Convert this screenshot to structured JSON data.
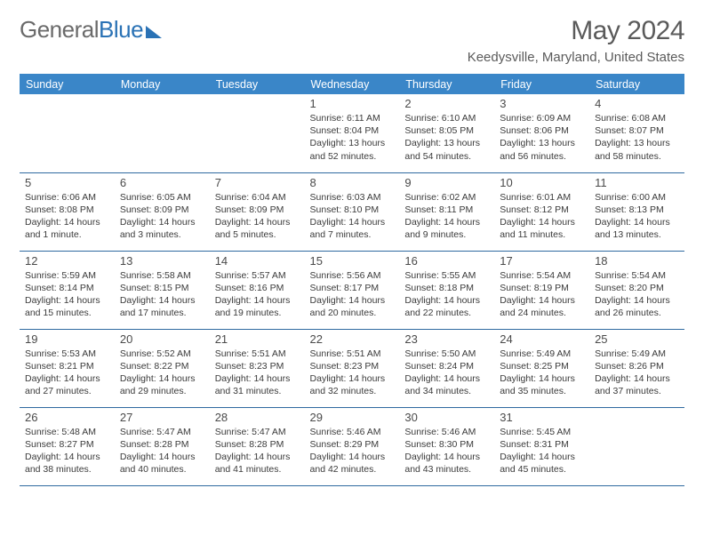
{
  "brand": {
    "first": "General",
    "second": "Blue"
  },
  "title": "May 2024",
  "location": "Keedysville, Maryland, United States",
  "colors": {
    "header_bg": "#3a86c8",
    "header_text": "#ffffff",
    "rule": "#2f6aa0",
    "body_text": "#3a3a3a",
    "title_text": "#5a5a5a",
    "brand_gray": "#6a6a6a",
    "brand_blue": "#2a72b5",
    "page_bg": "#ffffff"
  },
  "day_headers": [
    "Sunday",
    "Monday",
    "Tuesday",
    "Wednesday",
    "Thursday",
    "Friday",
    "Saturday"
  ],
  "weeks": [
    [
      null,
      null,
      null,
      {
        "n": "1",
        "sr": "Sunrise: 6:11 AM",
        "ss": "Sunset: 8:04 PM",
        "dl": "Daylight: 13 hours and 52 minutes."
      },
      {
        "n": "2",
        "sr": "Sunrise: 6:10 AM",
        "ss": "Sunset: 8:05 PM",
        "dl": "Daylight: 13 hours and 54 minutes."
      },
      {
        "n": "3",
        "sr": "Sunrise: 6:09 AM",
        "ss": "Sunset: 8:06 PM",
        "dl": "Daylight: 13 hours and 56 minutes."
      },
      {
        "n": "4",
        "sr": "Sunrise: 6:08 AM",
        "ss": "Sunset: 8:07 PM",
        "dl": "Daylight: 13 hours and 58 minutes."
      }
    ],
    [
      {
        "n": "5",
        "sr": "Sunrise: 6:06 AM",
        "ss": "Sunset: 8:08 PM",
        "dl": "Daylight: 14 hours and 1 minute."
      },
      {
        "n": "6",
        "sr": "Sunrise: 6:05 AM",
        "ss": "Sunset: 8:09 PM",
        "dl": "Daylight: 14 hours and 3 minutes."
      },
      {
        "n": "7",
        "sr": "Sunrise: 6:04 AM",
        "ss": "Sunset: 8:09 PM",
        "dl": "Daylight: 14 hours and 5 minutes."
      },
      {
        "n": "8",
        "sr": "Sunrise: 6:03 AM",
        "ss": "Sunset: 8:10 PM",
        "dl": "Daylight: 14 hours and 7 minutes."
      },
      {
        "n": "9",
        "sr": "Sunrise: 6:02 AM",
        "ss": "Sunset: 8:11 PM",
        "dl": "Daylight: 14 hours and 9 minutes."
      },
      {
        "n": "10",
        "sr": "Sunrise: 6:01 AM",
        "ss": "Sunset: 8:12 PM",
        "dl": "Daylight: 14 hours and 11 minutes."
      },
      {
        "n": "11",
        "sr": "Sunrise: 6:00 AM",
        "ss": "Sunset: 8:13 PM",
        "dl": "Daylight: 14 hours and 13 minutes."
      }
    ],
    [
      {
        "n": "12",
        "sr": "Sunrise: 5:59 AM",
        "ss": "Sunset: 8:14 PM",
        "dl": "Daylight: 14 hours and 15 minutes."
      },
      {
        "n": "13",
        "sr": "Sunrise: 5:58 AM",
        "ss": "Sunset: 8:15 PM",
        "dl": "Daylight: 14 hours and 17 minutes."
      },
      {
        "n": "14",
        "sr": "Sunrise: 5:57 AM",
        "ss": "Sunset: 8:16 PM",
        "dl": "Daylight: 14 hours and 19 minutes."
      },
      {
        "n": "15",
        "sr": "Sunrise: 5:56 AM",
        "ss": "Sunset: 8:17 PM",
        "dl": "Daylight: 14 hours and 20 minutes."
      },
      {
        "n": "16",
        "sr": "Sunrise: 5:55 AM",
        "ss": "Sunset: 8:18 PM",
        "dl": "Daylight: 14 hours and 22 minutes."
      },
      {
        "n": "17",
        "sr": "Sunrise: 5:54 AM",
        "ss": "Sunset: 8:19 PM",
        "dl": "Daylight: 14 hours and 24 minutes."
      },
      {
        "n": "18",
        "sr": "Sunrise: 5:54 AM",
        "ss": "Sunset: 8:20 PM",
        "dl": "Daylight: 14 hours and 26 minutes."
      }
    ],
    [
      {
        "n": "19",
        "sr": "Sunrise: 5:53 AM",
        "ss": "Sunset: 8:21 PM",
        "dl": "Daylight: 14 hours and 27 minutes."
      },
      {
        "n": "20",
        "sr": "Sunrise: 5:52 AM",
        "ss": "Sunset: 8:22 PM",
        "dl": "Daylight: 14 hours and 29 minutes."
      },
      {
        "n": "21",
        "sr": "Sunrise: 5:51 AM",
        "ss": "Sunset: 8:23 PM",
        "dl": "Daylight: 14 hours and 31 minutes."
      },
      {
        "n": "22",
        "sr": "Sunrise: 5:51 AM",
        "ss": "Sunset: 8:23 PM",
        "dl": "Daylight: 14 hours and 32 minutes."
      },
      {
        "n": "23",
        "sr": "Sunrise: 5:50 AM",
        "ss": "Sunset: 8:24 PM",
        "dl": "Daylight: 14 hours and 34 minutes."
      },
      {
        "n": "24",
        "sr": "Sunrise: 5:49 AM",
        "ss": "Sunset: 8:25 PM",
        "dl": "Daylight: 14 hours and 35 minutes."
      },
      {
        "n": "25",
        "sr": "Sunrise: 5:49 AM",
        "ss": "Sunset: 8:26 PM",
        "dl": "Daylight: 14 hours and 37 minutes."
      }
    ],
    [
      {
        "n": "26",
        "sr": "Sunrise: 5:48 AM",
        "ss": "Sunset: 8:27 PM",
        "dl": "Daylight: 14 hours and 38 minutes."
      },
      {
        "n": "27",
        "sr": "Sunrise: 5:47 AM",
        "ss": "Sunset: 8:28 PM",
        "dl": "Daylight: 14 hours and 40 minutes."
      },
      {
        "n": "28",
        "sr": "Sunrise: 5:47 AM",
        "ss": "Sunset: 8:28 PM",
        "dl": "Daylight: 14 hours and 41 minutes."
      },
      {
        "n": "29",
        "sr": "Sunrise: 5:46 AM",
        "ss": "Sunset: 8:29 PM",
        "dl": "Daylight: 14 hours and 42 minutes."
      },
      {
        "n": "30",
        "sr": "Sunrise: 5:46 AM",
        "ss": "Sunset: 8:30 PM",
        "dl": "Daylight: 14 hours and 43 minutes."
      },
      {
        "n": "31",
        "sr": "Sunrise: 5:45 AM",
        "ss": "Sunset: 8:31 PM",
        "dl": "Daylight: 14 hours and 45 minutes."
      },
      null
    ]
  ]
}
